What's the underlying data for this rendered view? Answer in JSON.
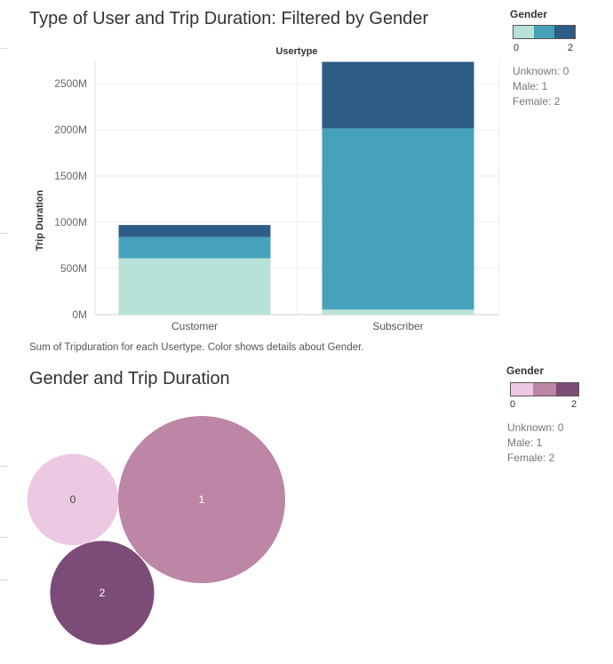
{
  "chart_data": [
    {
      "type": "bar",
      "stacked": true,
      "title": "Type of User and Trip Duration: Filtered by Gender",
      "header": "Usertype",
      "xlabel": "",
      "ylabel": "Trip Duration",
      "categories": [
        "Customer",
        "Subscriber"
      ],
      "series": [
        {
          "name": "0",
          "values": [
            610,
            55
          ],
          "color": "#b8e2d7"
        },
        {
          "name": "1",
          "values": [
            230,
            1960
          ],
          "color": "#45a2ba"
        },
        {
          "name": "2",
          "values": [
            130,
            720
          ],
          "color": "#2d5c87"
        }
      ],
      "ylim": [
        0,
        2750
      ],
      "yticks": [
        0,
        500,
        1000,
        1500,
        2000,
        2500
      ],
      "ytick_labels": [
        "0M",
        "500M",
        "1000M",
        "1500M",
        "2000M",
        "2500M"
      ],
      "grid": true,
      "caption": "Sum of Tripduration for each Usertype.  Color shows details about Gender.",
      "legend": {
        "title": "Gender",
        "min_label": "0",
        "max_label": "2",
        "notes": [
          "Unknown: 0",
          "Male: 1",
          "Female: 2"
        ],
        "colors": [
          "#b8e2d7",
          "#45a2ba",
          "#2d5c87"
        ],
        "placement": "top-right"
      }
    },
    {
      "type": "bubble",
      "title": "Gender and Trip Duration",
      "categories": [
        "0",
        "1",
        "2"
      ],
      "values": [
        1000,
        3350,
        1300
      ],
      "colors": [
        "#edc8e2",
        "#bd85a6",
        "#7c4b77"
      ],
      "label_colors": [
        "#444444",
        "#ffffff",
        "#ffffff"
      ],
      "legend": {
        "title": "Gender",
        "min_label": "0",
        "max_label": "2",
        "notes": [
          "Unknown: 0",
          "Male: 1",
          "Female: 2"
        ],
        "colors": [
          "#edc8e2",
          "#bd85a6",
          "#7c4b77"
        ],
        "placement": "top-right"
      }
    }
  ]
}
